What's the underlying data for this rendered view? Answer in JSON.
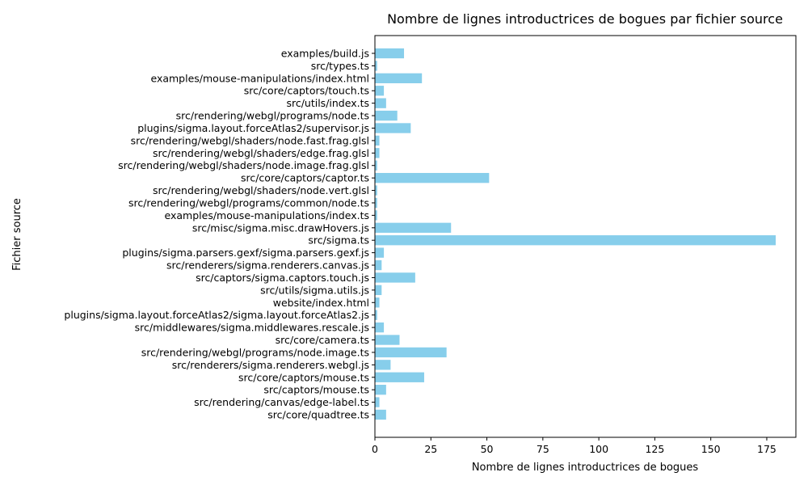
{
  "chart_data": {
    "type": "bar",
    "orientation": "horizontal",
    "title": "Nombre de lignes introductrices de bogues par fichier source",
    "xlabel": "Nombre de lignes introductrices de bogues",
    "ylabel": "Fichier source",
    "xlim": [
      0,
      188
    ],
    "xticks": [
      0,
      25,
      50,
      75,
      100,
      125,
      150,
      175
    ],
    "bar_color": "#87ceeb",
    "grid": false,
    "categories": [
      "src/core/quadtree.ts",
      "src/rendering/canvas/edge-label.ts",
      "src/captors/mouse.ts",
      "src/core/captors/mouse.ts",
      "src/renderers/sigma.renderers.webgl.js",
      "src/rendering/webgl/programs/node.image.ts",
      "src/core/camera.ts",
      "src/middlewares/sigma.middlewares.rescale.js",
      "plugins/sigma.layout.forceAtlas2/sigma.layout.forceAtlas2.js",
      "website/index.html",
      "src/utils/sigma.utils.js",
      "src/captors/sigma.captors.touch.js",
      "src/renderers/sigma.renderers.canvas.js",
      "plugins/sigma.parsers.gexf/sigma.parsers.gexf.js",
      "src/sigma.ts",
      "src/misc/sigma.misc.drawHovers.js",
      "examples/mouse-manipulations/index.ts",
      "src/rendering/webgl/programs/common/node.ts",
      "src/rendering/webgl/shaders/node.vert.glsl",
      "src/core/captors/captor.ts",
      "src/rendering/webgl/shaders/node.image.frag.glsl",
      "src/rendering/webgl/shaders/edge.frag.glsl",
      "src/rendering/webgl/shaders/node.fast.frag.glsl",
      "plugins/sigma.layout.forceAtlas2/supervisor.js",
      "src/rendering/webgl/programs/node.ts",
      "src/utils/index.ts",
      "src/core/captors/touch.ts",
      "examples/mouse-manipulations/index.html",
      "src/types.ts",
      "examples/build.js"
    ],
    "values": [
      5,
      2,
      5,
      22,
      7,
      32,
      11,
      4,
      1,
      2,
      3,
      18,
      3,
      4,
      179,
      34,
      1,
      1,
      1,
      51,
      1,
      2,
      2,
      16,
      10,
      5,
      4,
      21,
      1,
      13
    ]
  }
}
